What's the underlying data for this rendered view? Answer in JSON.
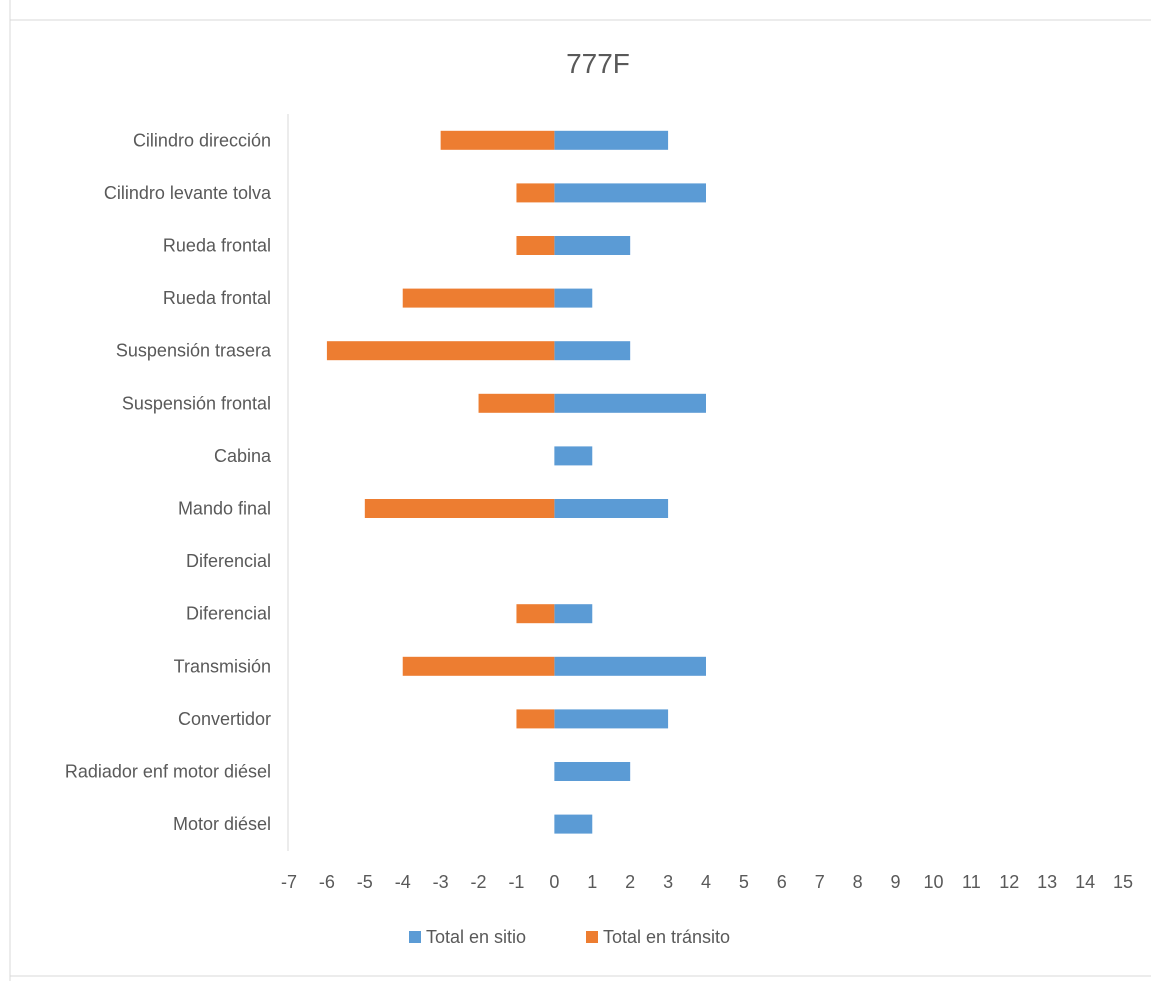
{
  "chart_data": {
    "type": "bar",
    "orientation": "horizontal",
    "stacked": true,
    "title": "777F",
    "categories": [
      "Cilindro dirección",
      "Cilindro levante tolva",
      "Rueda frontal",
      "Rueda frontal",
      "Suspensión trasera",
      "Suspensión frontal",
      "Cabina",
      "Mando final",
      "Diferencial",
      "Diferencial",
      "Transmisión",
      "Convertidor",
      "Radiador enf motor diésel",
      "Motor diésel"
    ],
    "series": [
      {
        "name": "Total en sitio",
        "color": "#5b9bd5",
        "values": [
          3,
          4,
          2,
          1,
          2,
          4,
          1,
          3,
          0,
          1,
          4,
          3,
          2,
          1
        ]
      },
      {
        "name": "Total en tránsito",
        "color": "#ed7d31",
        "values": [
          -3,
          -1,
          -1,
          -4,
          -6,
          -2,
          0,
          -5,
          0,
          -1,
          -4,
          -1,
          0,
          0
        ]
      }
    ],
    "xlim": [
      -7,
      15
    ],
    "xticks": [
      -7,
      -6,
      -5,
      -4,
      -3,
      -2,
      -1,
      0,
      1,
      2,
      3,
      4,
      5,
      6,
      7,
      8,
      9,
      10,
      11,
      12,
      13,
      14,
      15
    ],
    "grid": false,
    "legend_position": "bottom"
  }
}
